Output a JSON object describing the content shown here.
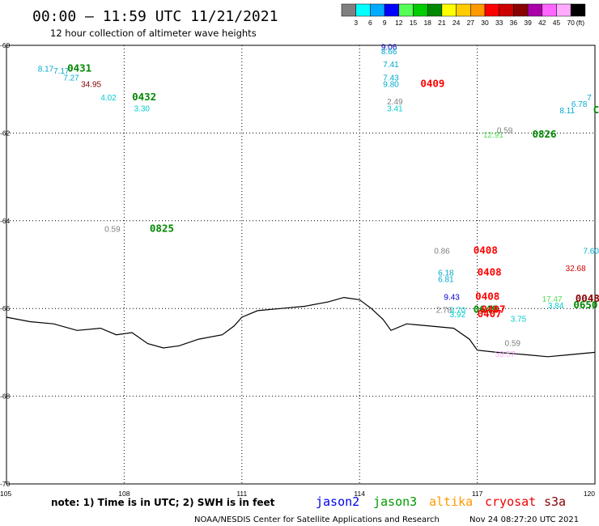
{
  "header": {
    "title": "00:00 – 11:59 UTC 11/21/2021",
    "subtitle": "12 hour collection of altimeter wave heights"
  },
  "colorbar": {
    "colors": [
      "#808080",
      "#00ffff",
      "#00aaff",
      "#0000ff",
      "#55ff55",
      "#00cc00",
      "#008800",
      "#ffff00",
      "#ffcc00",
      "#ff9900",
      "#ff0000",
      "#cc0000",
      "#880000",
      "#aa00aa",
      "#ff66ff",
      "#ffaaff",
      "#000000"
    ],
    "labels": [
      "3",
      "6",
      "9",
      "12",
      "15",
      "18",
      "21",
      "24",
      "27",
      "30",
      "33",
      "36",
      "39",
      "42",
      "45",
      "70",
      "(ft)"
    ]
  },
  "chart_data": {
    "type": "scatter",
    "title": "00:00 – 11:59 UTC 11/21/2021",
    "subtitle": "12 hour collection of altimeter wave heights",
    "xlim": [
      105,
      120
    ],
    "ylim": [
      -70,
      -60
    ],
    "x_ticks": [
      "105",
      "108",
      "111",
      "114",
      "117",
      "120"
    ],
    "y_ticks": [
      "-60",
      "-62",
      "-64",
      "-66",
      "-68",
      "-70"
    ],
    "grid": true,
    "coastline": [
      [
        105,
        -66.2
      ],
      [
        105.6,
        -66.3
      ],
      [
        106.2,
        -66.35
      ],
      [
        106.8,
        -66.5
      ],
      [
        107.4,
        -66.45
      ],
      [
        107.8,
        -66.6
      ],
      [
        108.2,
        -66.55
      ],
      [
        108.6,
        -66.8
      ],
      [
        109,
        -66.9
      ],
      [
        109.4,
        -66.85
      ],
      [
        109.9,
        -66.7
      ],
      [
        110.5,
        -66.6
      ],
      [
        110.8,
        -66.4
      ],
      [
        111,
        -66.2
      ],
      [
        111.4,
        -66.05
      ],
      [
        112,
        -66
      ],
      [
        112.6,
        -65.95
      ],
      [
        113.2,
        -65.85
      ],
      [
        113.6,
        -65.75
      ],
      [
        114,
        -65.8
      ],
      [
        114.3,
        -66
      ],
      [
        114.6,
        -66.25
      ],
      [
        114.8,
        -66.5
      ],
      [
        115.2,
        -66.35
      ],
      [
        115.8,
        -66.4
      ],
      [
        116.4,
        -66.45
      ],
      [
        116.8,
        -66.7
      ],
      [
        117,
        -66.95
      ],
      [
        117.5,
        -67
      ],
      [
        118.2,
        -67.05
      ],
      [
        118.8,
        -67.1
      ],
      [
        119.4,
        -67.05
      ],
      [
        120,
        -67
      ]
    ],
    "points": [
      {
        "x": 105.8,
        "y": -60.6,
        "text": "8.17",
        "color": "#00aacc",
        "kind": "swh"
      },
      {
        "x": 106.2,
        "y": -60.65,
        "text": "7.17",
        "color": "#00aacc",
        "kind": "swh"
      },
      {
        "x": 106.55,
        "y": -60.6,
        "text": "0431",
        "color": "#008800",
        "kind": "time"
      },
      {
        "x": 106.45,
        "y": -60.8,
        "text": "7.27",
        "color": "#00aacc",
        "kind": "swh"
      },
      {
        "x": 106.9,
        "y": -60.95,
        "text": "34.95",
        "color": "#880000",
        "kind": "swh"
      },
      {
        "x": 107.4,
        "y": -61.25,
        "text": "4.02",
        "color": "#00cccc",
        "kind": "swh"
      },
      {
        "x": 108.2,
        "y": -61.25,
        "text": "0432",
        "color": "#008800",
        "kind": "time"
      },
      {
        "x": 108.25,
        "y": -61.5,
        "text": "3.30",
        "color": "#00cccc",
        "kind": "swh"
      },
      {
        "x": 114.55,
        "y": -60.1,
        "text": "9.06",
        "color": "#0000cc",
        "kind": "swh"
      },
      {
        "x": 114.55,
        "y": -60.2,
        "text": "8.66",
        "color": "#00aacc",
        "kind": "swh"
      },
      {
        "x": 114.6,
        "y": -60.5,
        "text": "7.41",
        "color": "#00aacc",
        "kind": "swh"
      },
      {
        "x": 114.6,
        "y": -60.8,
        "text": "7.43",
        "color": "#00aacc",
        "kind": "swh"
      },
      {
        "x": 114.6,
        "y": -60.95,
        "text": "9.80",
        "color": "#00aacc",
        "kind": "swh"
      },
      {
        "x": 115.55,
        "y": -60.95,
        "text": "0409",
        "color": "#ff0000",
        "kind": "time"
      },
      {
        "x": 114.7,
        "y": -61.35,
        "text": "2.49",
        "color": "#808080",
        "kind": "swh"
      },
      {
        "x": 114.7,
        "y": -61.5,
        "text": "3.41",
        "color": "#00cccc",
        "kind": "swh"
      },
      {
        "x": 117.5,
        "y": -62.0,
        "text": "0.59",
        "color": "#808080",
        "kind": "swh"
      },
      {
        "x": 117.15,
        "y": -62.1,
        "text": "12.91",
        "color": "#55dd55",
        "kind": "swh"
      },
      {
        "x": 118.4,
        "y": -62.1,
        "text": "0826",
        "color": "#008800",
        "kind": "time"
      },
      {
        "x": 119.4,
        "y": -61.4,
        "text": "6.78",
        "color": "#00aacc",
        "kind": "swh"
      },
      {
        "x": 119.8,
        "y": -61.25,
        "text": "7",
        "color": "#00aacc",
        "kind": "swh"
      },
      {
        "x": 119.1,
        "y": -61.55,
        "text": "8.11",
        "color": "#00aacc",
        "kind": "swh"
      },
      {
        "x": 119.95,
        "y": -61.55,
        "text": "C",
        "color": "#008800",
        "kind": "time"
      },
      {
        "x": 107.5,
        "y": -64.25,
        "text": "0.59",
        "color": "#808080",
        "kind": "swh"
      },
      {
        "x": 108.65,
        "y": -64.25,
        "text": "0825",
        "color": "#008800",
        "kind": "time"
      },
      {
        "x": 115.9,
        "y": -64.75,
        "text": "0.86",
        "color": "#808080",
        "kind": "swh"
      },
      {
        "x": 116.9,
        "y": -64.75,
        "text": "0408",
        "color": "#ff0000",
        "kind": "time"
      },
      {
        "x": 119.7,
        "y": -64.75,
        "text": "7.60",
        "color": "#00aacc",
        "kind": "swh"
      },
      {
        "x": 119.25,
        "y": -65.15,
        "text": "32.68",
        "color": "#cc0000",
        "kind": "swh"
      },
      {
        "x": 116.0,
        "y": -65.25,
        "text": "6.18",
        "color": "#00aacc",
        "kind": "swh"
      },
      {
        "x": 116.0,
        "y": -65.4,
        "text": "6.81",
        "color": "#00aacc",
        "kind": "swh"
      },
      {
        "x": 117.0,
        "y": -65.25,
        "text": "0408",
        "color": "#ff0000",
        "kind": "time"
      },
      {
        "x": 116.15,
        "y": -65.8,
        "text": "9.43",
        "color": "#0000cc",
        "kind": "swh"
      },
      {
        "x": 116.95,
        "y": -65.8,
        "text": "0408",
        "color": "#ff0000",
        "kind": "time"
      },
      {
        "x": 118.65,
        "y": -65.85,
        "text": "17.47",
        "color": "#55dd55",
        "kind": "swh"
      },
      {
        "x": 119.5,
        "y": -65.85,
        "text": "0048",
        "color": "#880000",
        "kind": "time"
      },
      {
        "x": 118.8,
        "y": -66.0,
        "text": "3.84",
        "color": "#00cccc",
        "kind": "swh"
      },
      {
        "x": 119.45,
        "y": -66.0,
        "text": "0650",
        "color": "#008800",
        "kind": "time"
      },
      {
        "x": 115.95,
        "y": -66.1,
        "text": "2.78",
        "color": "#808080",
        "kind": "swh"
      },
      {
        "x": 116.3,
        "y": -66.1,
        "text": "3.70",
        "color": "#00cccc",
        "kind": "swh"
      },
      {
        "x": 116.9,
        "y": -66.1,
        "text": "0649",
        "color": "#008800",
        "kind": "time"
      },
      {
        "x": 117.1,
        "y": -66.1,
        "text": "0407",
        "color": "#ff0000",
        "kind": "time"
      },
      {
        "x": 116.3,
        "y": -66.2,
        "text": "3.92",
        "color": "#00cccc",
        "kind": "swh"
      },
      {
        "x": 117.0,
        "y": -66.2,
        "text": "0407",
        "color": "#ff0000",
        "kind": "time"
      },
      {
        "x": 117.85,
        "y": -66.3,
        "text": "3.75",
        "color": "#00cccc",
        "kind": "swh"
      },
      {
        "x": 117.7,
        "y": -66.85,
        "text": "0.59",
        "color": "#808080",
        "kind": "swh"
      },
      {
        "x": 117.45,
        "y": -67.1,
        "text": "53.57",
        "color": "#ffaaff",
        "kind": "swh"
      }
    ]
  },
  "note": "note: 1) Time is in UTC; 2) SWH is in feet",
  "legend": [
    {
      "name": "jason2",
      "color": "#0000ee"
    },
    {
      "name": "jason3",
      "color": "#009900"
    },
    {
      "name": "altika",
      "color": "#ff9900"
    },
    {
      "name": "cryosat",
      "color": "#ee0000"
    },
    {
      "name": "s3a",
      "color": "#880000"
    }
  ],
  "footer": {
    "agency": "NOAA/NESDIS Center for Satellite Applications and Research",
    "timestamp": "Nov 24 08:27:20 UTC 2021"
  }
}
